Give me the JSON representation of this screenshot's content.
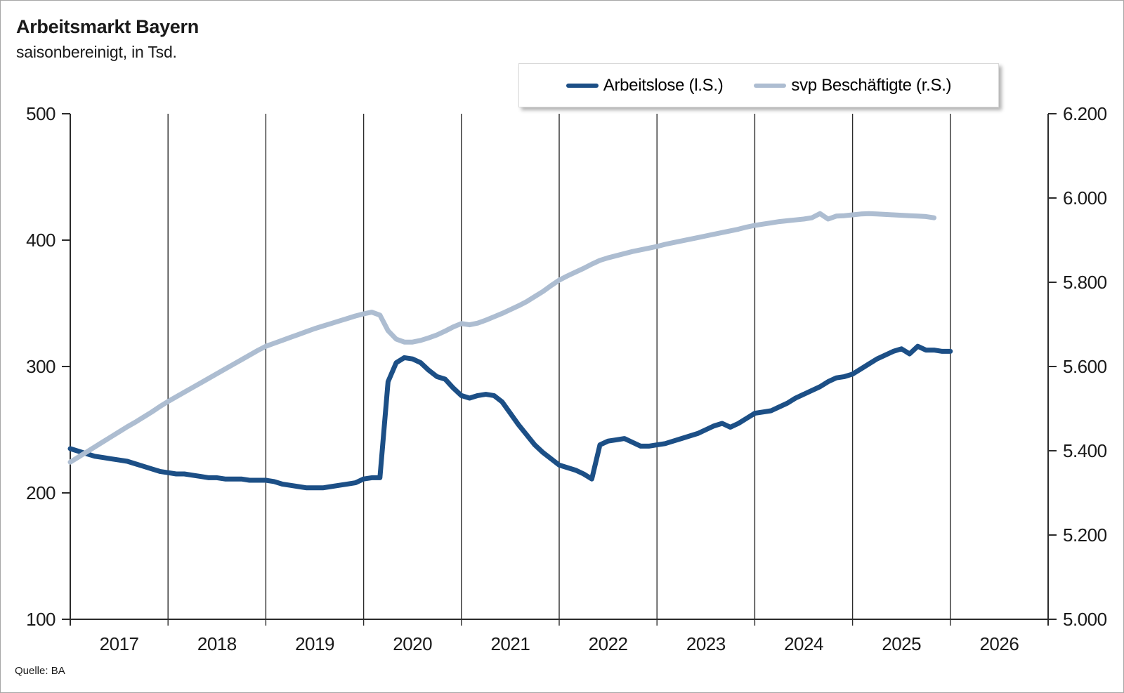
{
  "header": {
    "title": "Arbeitsmarkt Bayern",
    "subtitle": "saisonbereinigt, in Tsd."
  },
  "footer": {
    "source": "Quelle: BA"
  },
  "legend": [
    {
      "label": "Arbeitslose (l.S.)",
      "color": "#1c4f86"
    },
    {
      "label": "svp Beschäftigte (r.S.)",
      "color": "#adbdd1"
    }
  ],
  "chart_data": {
    "type": "line",
    "title": "Arbeitsmarkt Bayern",
    "subtitle": "saisonbereinigt, in Tsd.",
    "x_axis": {
      "labels": [
        "2017",
        "2018",
        "2019",
        "2020",
        "2021",
        "2022",
        "2023",
        "2024",
        "2025",
        "2026"
      ],
      "range": [
        2017,
        2027
      ],
      "gridlines": "vertical at each year boundary",
      "grid_color": "#2b2b2b"
    },
    "left_axis": {
      "title": "Arbeitslose in Tsd.",
      "tick_labels": [
        "500",
        "400",
        "300",
        "200",
        "100"
      ],
      "range": [
        100,
        500
      ]
    },
    "right_axis": {
      "title": "svp Beschäftigte in Tsd.",
      "tick_labels": [
        "6.200",
        "6.000",
        "5.800",
        "5.600",
        "5.400",
        "5.200",
        "5.000"
      ],
      "range": [
        5000,
        6200
      ]
    },
    "series": [
      {
        "name": "Arbeitslose (l.S.)",
        "axis": "left",
        "color": "#1c4f86",
        "start": "2017-01",
        "frequency": "monthly",
        "values": [
          235,
          233,
          231,
          229,
          228,
          227,
          226,
          225,
          223,
          221,
          219,
          217,
          216,
          215,
          215,
          214,
          213,
          212,
          212,
          211,
          211,
          211,
          210,
          210,
          210,
          209,
          207,
          206,
          205,
          204,
          204,
          204,
          205,
          206,
          207,
          208,
          211,
          212,
          212,
          288,
          303,
          307,
          306,
          303,
          297,
          292,
          290,
          283,
          277,
          275,
          277,
          278,
          277,
          272,
          263,
          254,
          246,
          238,
          232,
          227,
          222,
          220,
          218,
          215,
          211,
          238,
          241,
          242,
          243,
          240,
          237,
          237,
          238,
          239,
          241,
          243,
          245,
          247,
          250,
          253,
          255,
          252,
          255,
          259,
          263,
          264,
          265,
          268,
          271,
          275,
          278,
          281,
          284,
          288,
          291,
          292,
          294,
          298,
          302,
          306,
          309,
          312,
          314,
          310,
          316,
          313,
          313,
          312,
          312
        ]
      },
      {
        "name": "svp Beschäftigte (r.S.)",
        "axis": "right",
        "color": "#adbdd1",
        "start": "2017-01",
        "frequency": "monthly",
        "values": [
          5373,
          5385,
          5397,
          5409,
          5421,
          5433,
          5445,
          5457,
          5468,
          5480,
          5492,
          5505,
          5517,
          5528,
          5539,
          5550,
          5561,
          5572,
          5583,
          5594,
          5605,
          5616,
          5627,
          5638,
          5648,
          5655,
          5662,
          5669,
          5676,
          5683,
          5690,
          5696,
          5702,
          5708,
          5714,
          5720,
          5725,
          5729,
          5722,
          5685,
          5665,
          5658,
          5658,
          5662,
          5668,
          5675,
          5684,
          5694,
          5702,
          5699,
          5703,
          5710,
          5718,
          5726,
          5735,
          5744,
          5754,
          5766,
          5778,
          5792,
          5805,
          5815,
          5824,
          5833,
          5843,
          5852,
          5858,
          5863,
          5868,
          5873,
          5877,
          5881,
          5885,
          5890,
          5894,
          5898,
          5902,
          5906,
          5910,
          5914,
          5918,
          5922,
          5926,
          5931,
          5935,
          5938,
          5941,
          5944,
          5946,
          5948,
          5950,
          5953,
          5963,
          5950,
          5957,
          5958,
          5960,
          5962,
          5963,
          5962,
          5961,
          5960,
          5959,
          5958,
          5957,
          5956,
          5953
        ]
      }
    ]
  }
}
